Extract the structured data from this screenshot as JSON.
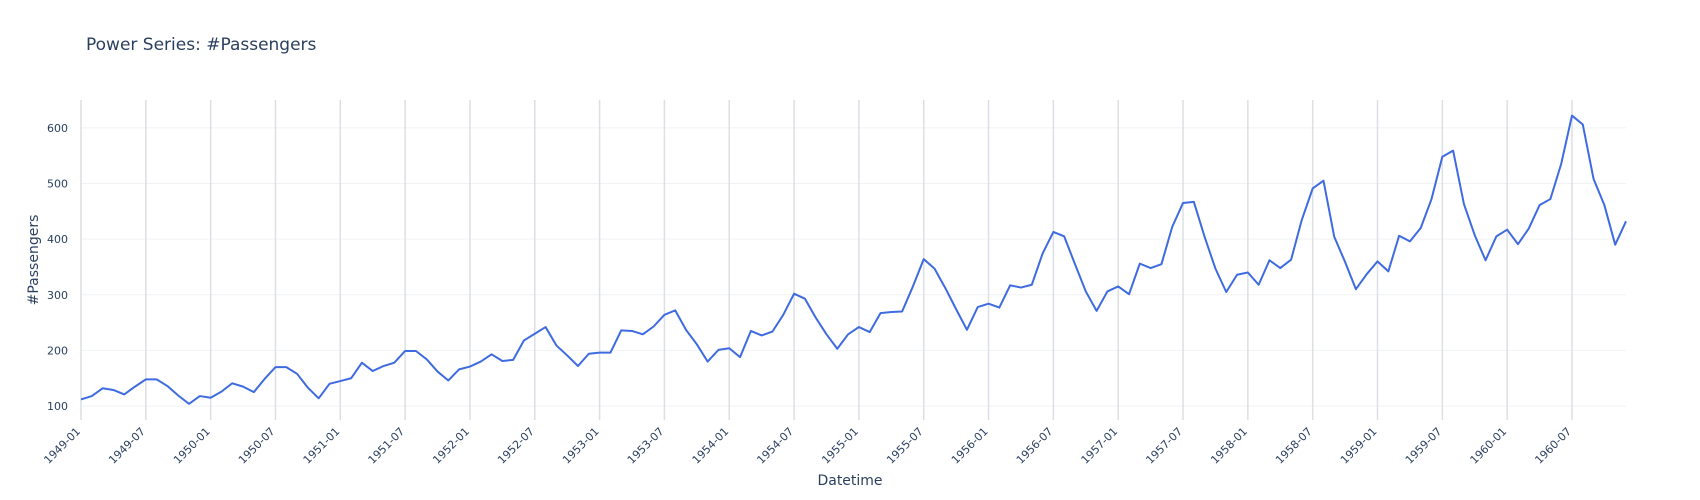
{
  "chart_data": {
    "type": "line",
    "title": "Power Series: #Passengers",
    "xlabel": "Datetime",
    "ylabel": "#Passengers",
    "ylim": [
      75,
      650
    ],
    "yticks": [
      100,
      200,
      300,
      400,
      500,
      600
    ],
    "xlim": [
      "1949-01",
      "1960-12"
    ],
    "xticks": [
      "1949-01",
      "1949-07",
      "1950-01",
      "1950-07",
      "1951-01",
      "1951-07",
      "1952-01",
      "1952-07",
      "1953-01",
      "1953-07",
      "1954-01",
      "1954-07",
      "1955-01",
      "1955-07",
      "1956-01",
      "1956-07",
      "1957-01",
      "1957-07",
      "1958-01",
      "1958-07",
      "1959-01",
      "1959-07",
      "1960-01",
      "1960-07"
    ],
    "grid": true,
    "line_color": "#3f6be0",
    "series": [
      {
        "x_start": "1949-01",
        "frequency": "monthly",
        "values": [
          112,
          118,
          132,
          129,
          121,
          135,
          148,
          148,
          136,
          119,
          104,
          118,
          115,
          126,
          141,
          135,
          125,
          149,
          170,
          170,
          158,
          133,
          114,
          140,
          145,
          150,
          178,
          163,
          172,
          178,
          199,
          199,
          184,
          162,
          146,
          166,
          171,
          180,
          193,
          181,
          183,
          218,
          230,
          242,
          209,
          191,
          172,
          194,
          196,
          196,
          236,
          235,
          229,
          243,
          264,
          272,
          237,
          211,
          180,
          201,
          204,
          188,
          235,
          227,
          234,
          264,
          302,
          293,
          259,
          229,
          203,
          229,
          242,
          233,
          267,
          269,
          270,
          315,
          364,
          347,
          312,
          274,
          237,
          278,
          284,
          277,
          317,
          313,
          318,
          374,
          413,
          405,
          355,
          306,
          271,
          306,
          315,
          301,
          356,
          348,
          355,
          422,
          465,
          467,
          404,
          347,
          305,
          336,
          340,
          318,
          362,
          348,
          363,
          435,
          491,
          505,
          404,
          359,
          310,
          337,
          360,
          342,
          406,
          396,
          420,
          472,
          548,
          559,
          463,
          407,
          362,
          405,
          417,
          391,
          419,
          461,
          472,
          535,
          622,
          606,
          508,
          461,
          390,
          432
        ]
      }
    ]
  }
}
